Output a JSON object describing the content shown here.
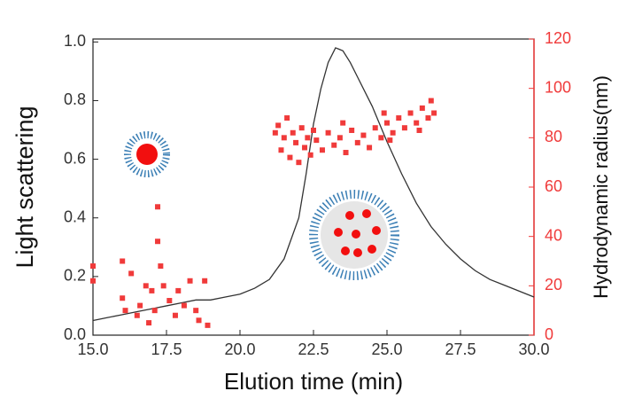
{
  "chart_data": {
    "type": "line-scatter",
    "x_label": "Elution time (min)",
    "y_label": "Light scattering",
    "y2_label": "Hydrodynamic radius(nm)",
    "xlim": [
      15,
      30
    ],
    "xticks": [
      {
        "value": 15,
        "label": "15.0"
      },
      {
        "value": 17.5,
        "label": "17.5"
      },
      {
        "value": 20,
        "label": "20.0"
      },
      {
        "value": 22.5,
        "label": "22.5"
      },
      {
        "value": 25,
        "label": "25.0"
      },
      {
        "value": 27.5,
        "label": "27.5"
      },
      {
        "value": 30,
        "label": "30.0"
      }
    ],
    "ylim": [
      0,
      1.01
    ],
    "yticks": [
      {
        "value": 0,
        "label": "0.0"
      },
      {
        "value": 0.2,
        "label": "0.2"
      },
      {
        "value": 0.4,
        "label": "0.4"
      },
      {
        "value": 0.6,
        "label": "0.6"
      },
      {
        "value": 0.8,
        "label": "0.8"
      },
      {
        "value": 1,
        "label": "1.0"
      }
    ],
    "y2lim": [
      0,
      120
    ],
    "y2ticks": [
      0,
      20,
      40,
      60,
      80,
      100,
      120
    ],
    "y2_color": "#f03a3a",
    "series": [
      {
        "type": "line",
        "color": "#333333",
        "x": [
          15,
          15.5,
          16,
          16.5,
          17,
          17.5,
          18,
          18.5,
          19,
          19.5,
          20,
          20.5,
          21,
          21.5,
          22,
          22.25,
          22.5,
          22.75,
          23,
          23.25,
          23.5,
          23.75,
          24,
          24.5,
          25,
          25.5,
          26,
          26.5,
          27,
          27.5,
          28,
          28.5,
          29,
          29.5,
          30
        ],
        "values": [
          0.05,
          0.06,
          0.07,
          0.08,
          0.09,
          0.1,
          0.11,
          0.12,
          0.12,
          0.13,
          0.14,
          0.16,
          0.19,
          0.26,
          0.4,
          0.55,
          0.72,
          0.84,
          0.93,
          0.98,
          0.97,
          0.93,
          0.88,
          0.78,
          0.66,
          0.55,
          0.45,
          0.37,
          0.31,
          0.26,
          0.22,
          0.19,
          0.17,
          0.15,
          0.13
        ]
      },
      {
        "type": "scatter",
        "color": "#f03a3a",
        "axis": "y2",
        "x": [
          15,
          15,
          16,
          16,
          16.1,
          16.3,
          16.5,
          16.6,
          16.8,
          16.9,
          17,
          17.1,
          17.2,
          17.2,
          17.3,
          17.4,
          17.6,
          17.8,
          17.9,
          18.1,
          18.3,
          18.5,
          18.6,
          18.8,
          18.9,
          21.3,
          21.4,
          21.5,
          21.6,
          21.7,
          21.8,
          21.9,
          22,
          22.1,
          22.2,
          22.3,
          22.4,
          22.6,
          22.8,
          23,
          23.2,
          23.4,
          23.6,
          23.8,
          24,
          24.2,
          24.4,
          24.6,
          24.8,
          25,
          25.2,
          25.4,
          25.6,
          25.8,
          26,
          26.2,
          26.4,
          26.6,
          26.5,
          26.1,
          25.1,
          23.5,
          22.5,
          21.2,
          24.9
        ],
        "values": [
          28,
          22,
          30,
          15,
          10,
          25,
          8,
          12,
          20,
          5,
          18,
          10,
          52,
          38,
          28,
          20,
          14,
          8,
          18,
          12,
          22,
          10,
          6,
          22,
          4,
          85,
          75,
          80,
          88,
          72,
          82,
          78,
          70,
          84,
          76,
          80,
          73,
          79,
          75,
          82,
          77,
          80,
          74,
          83,
          78,
          81,
          76,
          84,
          80,
          86,
          82,
          88,
          84,
          90,
          86,
          92,
          88,
          90,
          95,
          83,
          79,
          86,
          83,
          82,
          90
        ]
      }
    ]
  }
}
